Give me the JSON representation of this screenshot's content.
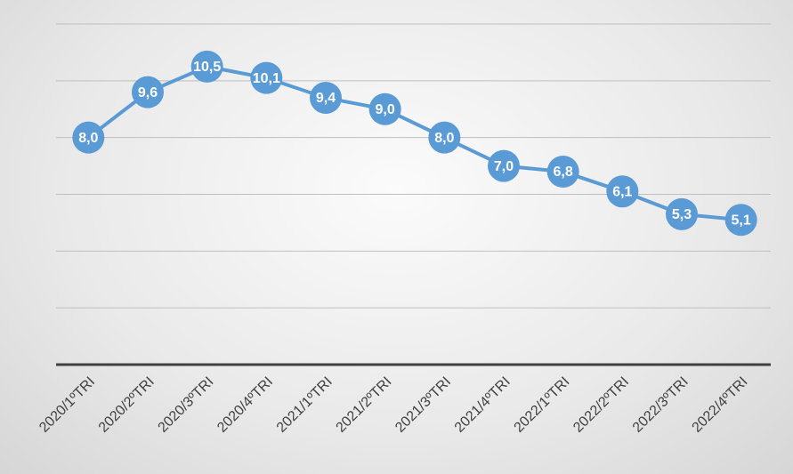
{
  "chart_data": {
    "type": "line",
    "categories": [
      "2020/1ºTRI",
      "2020/2ºTRI",
      "2020/3ºTRI",
      "2020/4ºTRI",
      "2021/1ºTRI",
      "2021/2ºTRI",
      "2021/3ºTRI",
      "2021/4ºTRI",
      "2022/1ºTRI",
      "2022/2ºTRI",
      "2022/3ºTRI",
      "2022/4ºTRI"
    ],
    "values": [
      8.0,
      9.6,
      10.5,
      10.1,
      9.4,
      9.0,
      8.0,
      7.0,
      6.8,
      6.1,
      5.3,
      5.1
    ],
    "value_labels": [
      "8,0",
      "9,6",
      "10,5",
      "10,1",
      "9,4",
      "9,0",
      "8,0",
      "7,0",
      "6,8",
      "6,1",
      "5,3",
      "5,1"
    ],
    "color": "#5b9bd5",
    "ylim": [
      0,
      12
    ],
    "yticks": [
      0,
      2,
      4,
      6,
      8,
      10,
      12
    ],
    "grid": true
  }
}
